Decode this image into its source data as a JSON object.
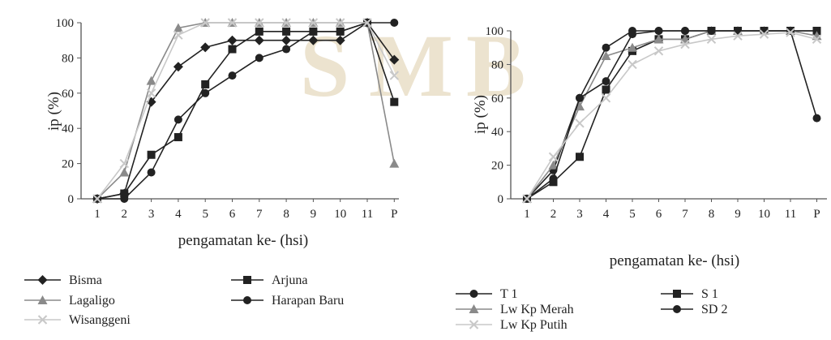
{
  "watermark": {
    "letters": [
      "S",
      "M",
      "B"
    ],
    "color": "#e7dcc4"
  },
  "chart_data": [
    {
      "type": "line",
      "title": "",
      "xlabel": "pengamatan ke- (hsi)",
      "ylabel": "ip (%)",
      "categories": [
        "1",
        "2",
        "3",
        "4",
        "5",
        "6",
        "7",
        "8",
        "9",
        "10",
        "11",
        "P"
      ],
      "yticks": [
        "0",
        "20",
        "40",
        "60",
        "80",
        "100"
      ],
      "ylim": [
        0,
        100
      ],
      "grid": false,
      "legend_position": "bottom",
      "series": [
        {
          "name": "Bisma",
          "marker": "diamond",
          "color": "#222222",
          "values": [
            0,
            3,
            55,
            75,
            86,
            90,
            90,
            90,
            90,
            90,
            100,
            79
          ]
        },
        {
          "name": "Arjuna",
          "marker": "square",
          "color": "#222222",
          "values": [
            0,
            3,
            25,
            35,
            65,
            85,
            95,
            95,
            95,
            95,
            100,
            55
          ]
        },
        {
          "name": "Lagaligo",
          "marker": "triangle",
          "color": "#8a8a8a",
          "values": [
            0,
            15,
            67,
            97,
            100,
            100,
            100,
            100,
            100,
            100,
            100,
            20
          ]
        },
        {
          "name": "Harapan Baru",
          "marker": "circle",
          "color": "#222222",
          "values": [
            0,
            0,
            15,
            45,
            60,
            70,
            80,
            85,
            95,
            95,
            100,
            100
          ]
        },
        {
          "name": "Wisanggeni",
          "marker": "cross",
          "color": "#c8c8c8",
          "values": [
            0,
            20,
            60,
            93,
            100,
            100,
            100,
            100,
            100,
            100,
            100,
            70
          ]
        }
      ]
    },
    {
      "type": "line",
      "title": "",
      "xlabel": "pengamatan ke- (hsi)",
      "ylabel": "ip (%)",
      "categories": [
        "1",
        "2",
        "3",
        "4",
        "5",
        "6",
        "7",
        "8",
        "9",
        "10",
        "11",
        "P"
      ],
      "yticks": [
        "0",
        "20",
        "40",
        "60",
        "80",
        "100"
      ],
      "ylim": [
        0,
        100
      ],
      "grid": false,
      "legend_position": "bottom",
      "series": [
        {
          "name": "T 1",
          "marker": "circle",
          "color": "#222222",
          "values": [
            0,
            17,
            60,
            90,
            100,
            100,
            100,
            100,
            100,
            100,
            100,
            100
          ]
        },
        {
          "name": "S 1",
          "marker": "square",
          "color": "#222222",
          "values": [
            0,
            10,
            25,
            65,
            88,
            95,
            95,
            100,
            100,
            100,
            100,
            100
          ]
        },
        {
          "name": "Lw Kp Merah",
          "marker": "triangle",
          "color": "#8a8a8a",
          "values": [
            0,
            20,
            55,
            85,
            90,
            95,
            95,
            100,
            100,
            100,
            100,
            97
          ]
        },
        {
          "name": "SD 2",
          "marker": "circle",
          "color": "#222222",
          "values": [
            0,
            12,
            60,
            70,
            98,
            100,
            100,
            100,
            100,
            100,
            100,
            48
          ]
        },
        {
          "name": "Lw Kp Putih",
          "marker": "cross",
          "color": "#c8c8c8",
          "values": [
            0,
            25,
            45,
            60,
            80,
            88,
            92,
            95,
            97,
            98,
            99,
            95
          ]
        }
      ]
    }
  ]
}
